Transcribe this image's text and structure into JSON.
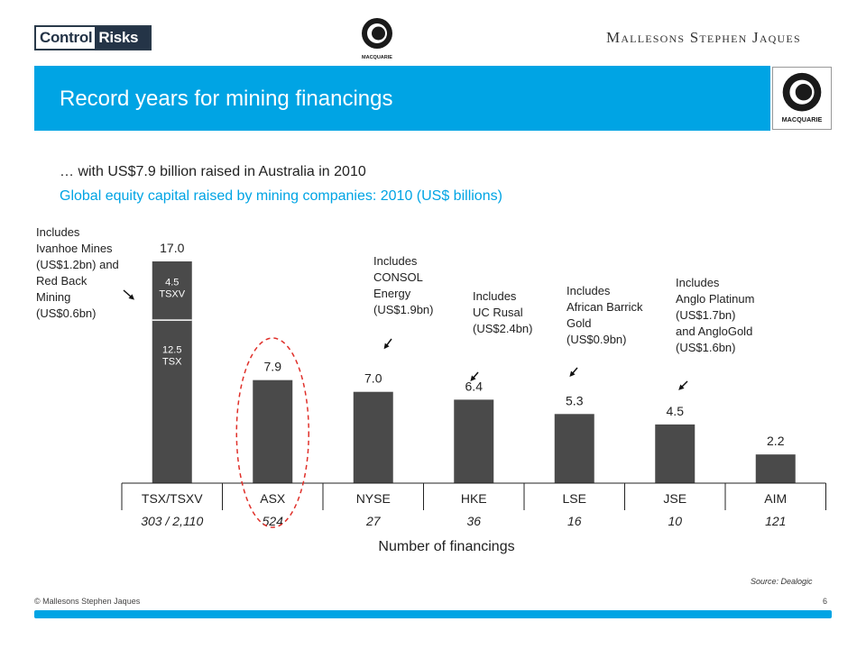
{
  "logos": {
    "control_risks_part1": "Control",
    "control_risks_part2": "Risks",
    "macquarie": "MACQUARIE",
    "mallesons": "Mallesons Stephen Jaques"
  },
  "title": "Record years for mining financings",
  "subtitle": "… with US$7.9 billion raised in Australia in 2010",
  "chart_heading": "Global equity capital raised by mining companies: 2010 (US$ billions)",
  "colors": {
    "accent": "#00a4e4",
    "bar": "#4a4a4a",
    "highlight": "#e0302a"
  },
  "chart_data": {
    "type": "bar",
    "stacked_first_bar": true,
    "categories": [
      "TSX/TSXV",
      "ASX",
      "NYSE",
      "HKE",
      "LSE",
      "JSE",
      "AIM"
    ],
    "values": [
      17.0,
      7.9,
      7.0,
      6.4,
      5.3,
      4.5,
      2.2
    ],
    "value_labels": [
      "17.0",
      "7.9",
      "7.0",
      "6.4",
      "5.3",
      "4.5",
      "2.2"
    ],
    "stack_segments": [
      {
        "label": "12.5\nTSX",
        "value": 12.5
      },
      {
        "label": "4.5\nTSXV",
        "value": 4.5
      }
    ],
    "financings": [
      "303 / 2,110",
      "524",
      "27",
      "36",
      "16",
      "10",
      "121"
    ],
    "xlabel": "Number of financings",
    "ylim": [
      0,
      17.0
    ],
    "highlighted_category": "ASX",
    "annotations": [
      "Includes\nIvanhoe Mines\n(US$1.2bn) and\nRed Back\nMining\n(US$0.6bn)",
      "Includes\nCONSOL\nEnergy\n(US$1.9bn)",
      "Includes\nUC Rusal\n(US$2.4bn)",
      "Includes\nAfrican Barrick\nGold\n(US$0.9bn)",
      "Includes\nAnglo Platinum\n(US$1.7bn)\nand AngloGold\n(US$1.6bn)"
    ]
  },
  "source": "Source: Dealogic",
  "footer": {
    "copyright": "© Mallesons Stephen Jaques",
    "page": "6"
  }
}
